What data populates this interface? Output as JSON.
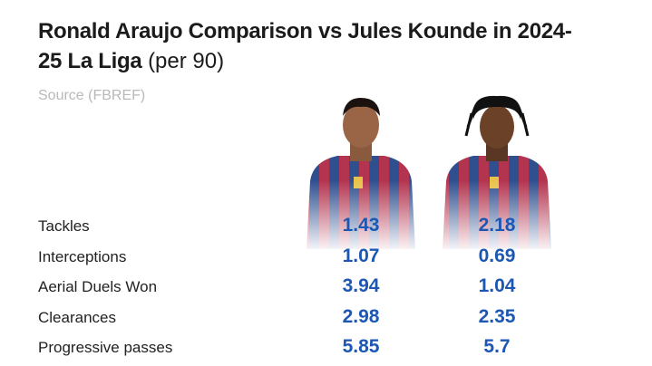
{
  "header": {
    "title": "Ronald Araujo Comparison vs Jules Kounde in 2024-25 La Liga",
    "title_suffix": "(per 90)",
    "source": "Source (FBREF)"
  },
  "table": {
    "rows": [
      [
        "Tackles",
        1.43,
        2.18
      ],
      [
        "Interceptions",
        1.07,
        0.69
      ],
      [
        "Aerial Duels Won",
        3.94,
        1.04
      ],
      [
        "Clearances",
        2.98,
        2.35
      ],
      [
        "Progressive passes",
        5.85,
        5.7
      ]
    ]
  }
}
